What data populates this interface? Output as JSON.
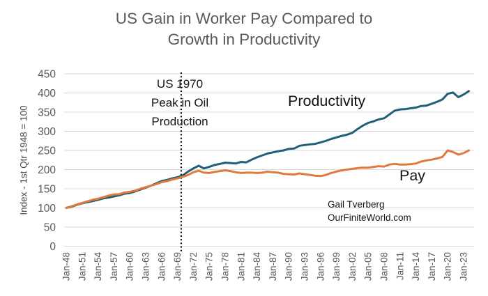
{
  "title": {
    "line1": "US Gain in Worker Pay Compared to",
    "line2": "Growth in Productivity"
  },
  "annotation": {
    "line1": "US 1970",
    "line2": "Peak in Oil",
    "line3": "Production"
  },
  "credit": {
    "line1": "Gail Tverberg",
    "line2": "OurFiniteWorld.com"
  },
  "colors": {
    "productivity_line": "#215E78",
    "pay_line": "#E0793C",
    "gridline": "#D9D9D9",
    "axis_text": "#595959",
    "title_text": "#595959",
    "annotation_text": "#141414",
    "background": "#FFFFFF",
    "vline": "#000000"
  },
  "chart_data": {
    "type": "line",
    "title": "US Gain in Worker Pay Compared to Growth in Productivity",
    "xlabel": "",
    "ylabel": "Index - 1st Qtr 1948 = 100",
    "ylim": [
      0,
      450
    ],
    "ytick_step": 50,
    "yticks": [
      0,
      50,
      100,
      150,
      200,
      250,
      300,
      350,
      400,
      450
    ],
    "xtick_labels": [
      "Jan-48",
      "Jan-51",
      "Jan-54",
      "Jan-57",
      "Jan-60",
      "Jan-63",
      "Jan-66",
      "Jan-69",
      "Jan-72",
      "Jan-75",
      "Jan-78",
      "Jan-81",
      "Jan-84",
      "Jan-87",
      "Jan-90",
      "Jan-93",
      "Jan-96",
      "Jan-99",
      "Jan-02",
      "Jan-05",
      "Jan-08",
      "Jan-11",
      "Jan-14",
      "Jan-17",
      "Jan-20",
      "Jan-23"
    ],
    "xtick_interval_years": 3,
    "start_year": 1948,
    "end_year": 2024,
    "grid": "horizontal",
    "legend_position": "inline-labels",
    "series": [
      {
        "name": "Productivity",
        "color": "#215E78",
        "values": [
          100,
          103,
          108,
          112,
          115,
          118,
          121,
          125,
          127,
          130,
          133,
          137,
          139,
          143,
          148,
          153,
          158,
          164,
          170,
          173,
          177,
          180,
          185,
          195,
          203,
          210,
          203,
          207,
          212,
          215,
          218,
          217,
          216,
          220,
          219,
          226,
          232,
          237,
          242,
          245,
          248,
          250,
          254,
          255,
          262,
          264,
          266,
          267,
          271,
          275,
          280,
          284,
          288,
          291,
          296,
          306,
          315,
          322,
          326,
          331,
          334,
          344,
          354,
          357,
          358,
          360,
          362,
          366,
          367,
          372,
          377,
          383,
          398,
          401,
          389,
          396,
          405
        ]
      },
      {
        "name": "Pay",
        "color": "#E0793C",
        "values": [
          100,
          104,
          109,
          113,
          117,
          121,
          124,
          128,
          132,
          135,
          136,
          140,
          142,
          145,
          150,
          154,
          158,
          162,
          167,
          170,
          174,
          177,
          181,
          186,
          193,
          197,
          192,
          191,
          194,
          196,
          198,
          196,
          193,
          191,
          192,
          192,
          191,
          192,
          195,
          193,
          192,
          189,
          188,
          187,
          190,
          188,
          186,
          184,
          183,
          186,
          191,
          195,
          198,
          200,
          202,
          204,
          205,
          205,
          207,
          209,
          208,
          213,
          215,
          213,
          213,
          214,
          216,
          221,
          224,
          226,
          229,
          233,
          250,
          246,
          239,
          243,
          250
        ]
      }
    ],
    "vline": {
      "year": 1970,
      "style": "dotted",
      "color": "#000000",
      "label": "US 1970 Peak in Oil Production"
    }
  }
}
